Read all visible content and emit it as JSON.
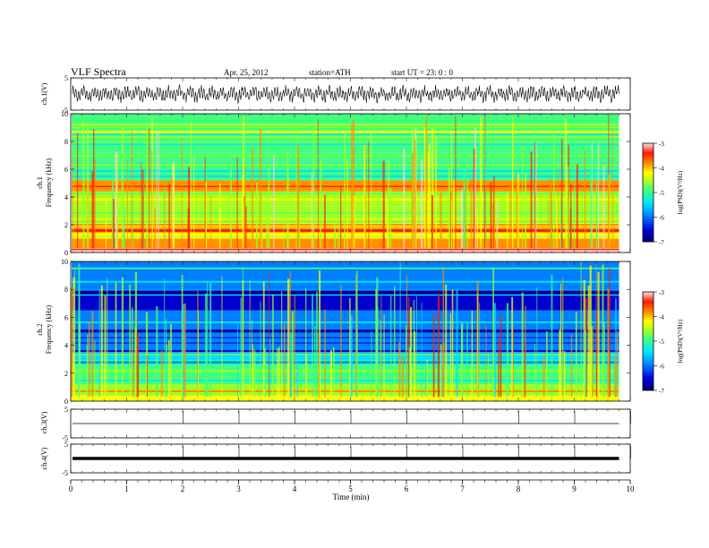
{
  "header": {
    "title": "VLF Spectra",
    "date": "Apr. 25, 2012",
    "station": "station=ATH",
    "start": "start  UT  =   23: 0  : 0"
  },
  "colors": {
    "spectrum_scale": [
      "#000066",
      "#0000cc",
      "#0080ff",
      "#00e0ff",
      "#40ff80",
      "#a0ff20",
      "#ffff00",
      "#ff9000",
      "#ff2000",
      "#ffd0d0"
    ],
    "trace": "#000000",
    "axis": "#000000"
  },
  "chart_data": [
    {
      "id": "ch1",
      "type": "line",
      "ylabel": "ch.1(V)",
      "yticks": [
        "5",
        "-5"
      ],
      "ylim": [
        -5,
        5
      ],
      "xlim": [
        0,
        10
      ],
      "data_end_min": 9.8,
      "trace": "dense oscillating waveform, amplitude about +/-2.5 V"
    },
    {
      "id": "ch1_spectrogram",
      "type": "heatmap",
      "channel_label": "ch.1",
      "ylabel": "Frequency (kHz)",
      "yticks": [
        "0",
        "2",
        "4",
        "6",
        "8",
        "10"
      ],
      "ylim": [
        0,
        10
      ],
      "xlim": [
        0,
        10
      ],
      "data_end_min": 9.8,
      "colorbar": {
        "label": "log(PSD)(V²/Hz)",
        "ticks": [
          "-3",
          "-4",
          "-5",
          "-6",
          "-7"
        ],
        "range": [
          -7,
          -3
        ]
      },
      "bands": [
        {
          "fmin": 0.0,
          "fmax": 0.3,
          "level": -3.2
        },
        {
          "fmin": 0.3,
          "fmax": 1.0,
          "level": -3.9
        },
        {
          "fmin": 1.0,
          "fmax": 2.2,
          "level": -4.2
        },
        {
          "fmin": 2.2,
          "fmax": 3.3,
          "level": -4.6
        },
        {
          "fmin": 3.3,
          "fmax": 4.4,
          "level": -4.9
        },
        {
          "fmin": 4.4,
          "fmax": 5.2,
          "level": -4.0
        },
        {
          "fmin": 5.2,
          "fmax": 6.3,
          "level": -5.1
        },
        {
          "fmin": 6.3,
          "fmax": 7.2,
          "level": -5.4
        },
        {
          "fmin": 7.2,
          "fmax": 10.0,
          "level": -5.2
        }
      ]
    },
    {
      "id": "ch2_spectrogram",
      "type": "heatmap",
      "channel_label": "ch.2",
      "ylabel": "Frequency (kHz)",
      "yticks": [
        "0",
        "2",
        "4",
        "6",
        "8",
        "10"
      ],
      "ylim": [
        0,
        10
      ],
      "xlim": [
        0,
        10
      ],
      "data_end_min": 9.8,
      "colorbar": {
        "label": "log(PSD)(V²/Hz)",
        "ticks": [
          "-3",
          "-4",
          "-5",
          "-6",
          "-7"
        ],
        "range": [
          -7,
          -3
        ]
      },
      "bands": [
        {
          "fmin": 0.0,
          "fmax": 0.4,
          "level": -4.5
        },
        {
          "fmin": 0.4,
          "fmax": 1.2,
          "level": -5.0
        },
        {
          "fmin": 1.2,
          "fmax": 2.5,
          "level": -5.3
        },
        {
          "fmin": 2.5,
          "fmax": 3.5,
          "level": -5.7
        },
        {
          "fmin": 3.5,
          "fmax": 5.0,
          "level": -6.0
        },
        {
          "fmin": 5.0,
          "fmax": 6.5,
          "level": -6.3
        },
        {
          "fmin": 6.5,
          "fmax": 8.0,
          "level": -6.5
        },
        {
          "fmin": 8.0,
          "fmax": 10.0,
          "level": -6.1
        }
      ]
    },
    {
      "id": "ch3",
      "type": "line",
      "ylabel": "ch.3(V)",
      "yticks": [
        "5",
        "-5"
      ],
      "ylim": [
        -5,
        5
      ],
      "xlim": [
        0,
        10
      ],
      "data_end_min": 9.8,
      "trace": "nearly flat trace near 0 V"
    },
    {
      "id": "ch4",
      "type": "line",
      "ylabel": "ch.4(V)",
      "yticks": [
        "5",
        "-5"
      ],
      "ylim": [
        -5,
        5
      ],
      "xlim": [
        0,
        10
      ],
      "data_end_min": 9.8,
      "trace": "thick flat trace near 0 V"
    }
  ],
  "xaxis": {
    "label": "Time  (min)",
    "ticks": [
      "0",
      "1",
      "2",
      "3",
      "4",
      "5",
      "6",
      "7",
      "8",
      "9",
      "10"
    ]
  }
}
